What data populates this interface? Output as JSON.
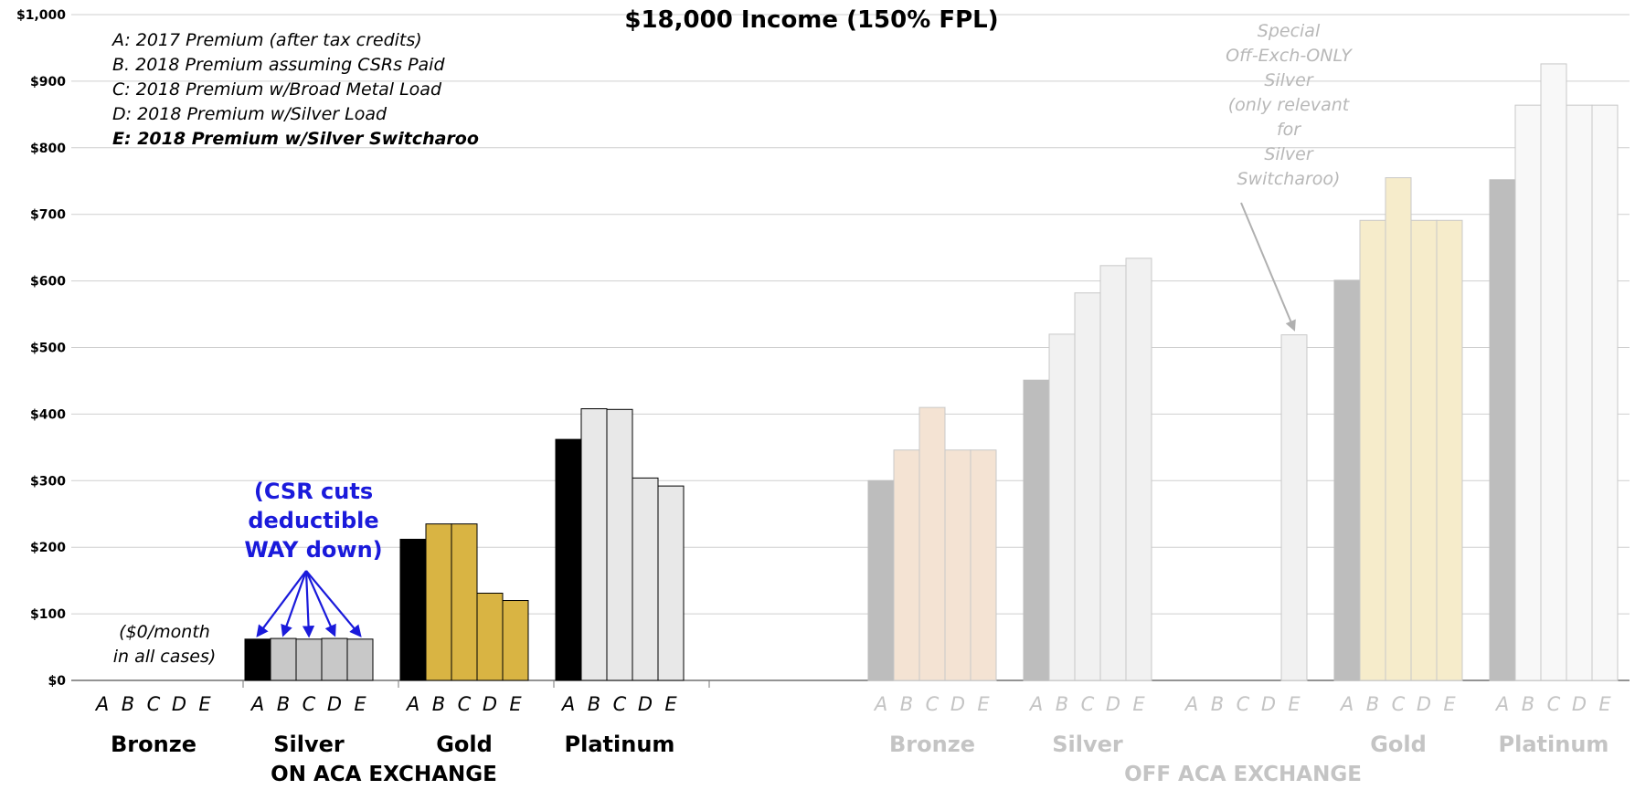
{
  "chart_data": {
    "type": "bar",
    "title": "$18,000 Income (150% FPL)",
    "ylim": [
      0,
      1000
    ],
    "yticks": [
      "$0",
      "$100",
      "$200",
      "$300",
      "$400",
      "$500",
      "$600",
      "$700",
      "$800",
      "$900",
      "$1,000"
    ],
    "grid": true,
    "legend": {
      "placement": "top-left",
      "entries": [
        {
          "key": "A",
          "text": "A: 2017 Premium (after tax credits)",
          "bold": false
        },
        {
          "key": "B",
          "text": "B. 2018 Premium assuming CSRs Paid",
          "bold": false
        },
        {
          "key": "C",
          "text": "C: 2018 Premium w/Broad Metal Load",
          "bold": false
        },
        {
          "key": "D",
          "text": "D: 2018 Premium w/Silver Load",
          "bold": false
        },
        {
          "key": "E",
          "text": "E: 2018 Premium w/Silver Switcharoo",
          "bold": true
        }
      ]
    },
    "bar_letters": [
      "A",
      "B",
      "C",
      "D",
      "E"
    ],
    "groups": [
      {
        "section": "on",
        "label": "Bronze",
        "values": [
          null,
          null,
          null,
          null,
          null
        ],
        "colorA": "#000000",
        "colorRest": "#000000"
      },
      {
        "section": "on",
        "label": "Silver",
        "values": [
          62,
          63,
          62,
          63,
          62
        ],
        "colorA": "#000000",
        "colorRest": "#c8c8c8"
      },
      {
        "section": "on",
        "label": "Gold",
        "values": [
          212,
          235,
          235,
          131,
          120
        ],
        "colorA": "#000000",
        "colorRest": "#d9b443"
      },
      {
        "section": "on",
        "label": "Platinum",
        "values": [
          362,
          408,
          407,
          304,
          292
        ],
        "colorA": "#000000",
        "colorRest": "#e8e8e8"
      },
      {
        "section": "off",
        "label": "Bronze",
        "values": [
          300,
          346,
          410,
          346,
          346
        ],
        "colorA": "#bdbdbd",
        "colorRest": "#f4e3d3"
      },
      {
        "section": "off",
        "label": "Silver",
        "values": [
          451,
          520,
          582,
          623,
          634
        ],
        "colorA": "#bdbdbd",
        "colorRest": "#f1f1f1"
      },
      {
        "section": "off",
        "label": "",
        "values": [
          null,
          null,
          null,
          null,
          519
        ],
        "colorA": "#bdbdbd",
        "colorRest": "#f1f1f1"
      },
      {
        "section": "off",
        "label": "Gold",
        "values": [
          601,
          691,
          755,
          691,
          691
        ],
        "colorA": "#bdbdbd",
        "colorRest": "#f6eccb"
      },
      {
        "section": "off",
        "label": "Platinum",
        "values": [
          752,
          864,
          926,
          864,
          864
        ],
        "colorA": "#bdbdbd",
        "colorRest": "#f8f8f8"
      }
    ],
    "sections": [
      {
        "key": "on",
        "label": "ON ACA EXCHANGE"
      },
      {
        "key": "off",
        "label": "OFF ACA EXCHANGE"
      }
    ],
    "annotations": {
      "bronze_note": [
        "($0/month",
        "in all cases)"
      ],
      "csr_note": [
        "(CSR cuts",
        "deductible",
        "WAY down)"
      ],
      "special_note": [
        "Special",
        "Off-Exch-ONLY",
        "Silver",
        "(only relevant",
        "for",
        "Silver",
        "Switcharoo)"
      ]
    },
    "colors": {
      "csr_note": "#1a1adb",
      "off_text": "#c4c4c4",
      "special_note": "#b8b8b8",
      "grid": "#cfcfcf"
    }
  }
}
